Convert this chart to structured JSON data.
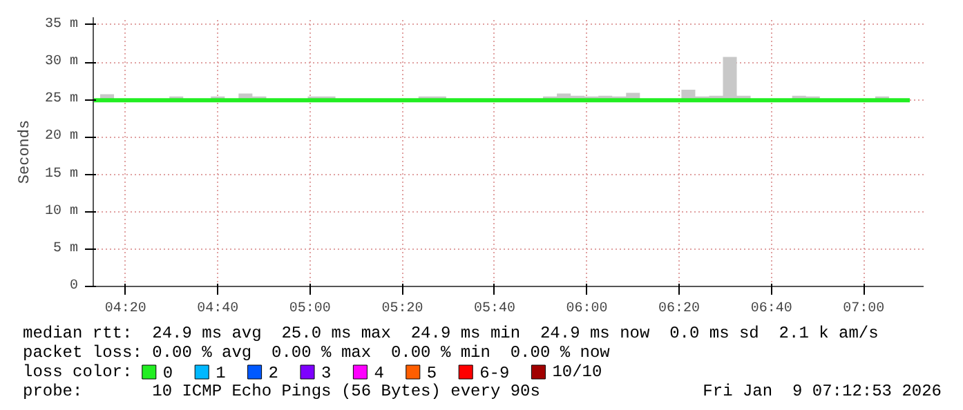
{
  "chart_data": {
    "type": "line",
    "ylabel": "Seconds",
    "legend_title": "loss color:",
    "legend": "bottom",
    "grid": true,
    "x": [
      "2026-01-09T04:13",
      "2026-01-09T04:16",
      "2026-01-09T04:19",
      "2026-01-09T04:22",
      "2026-01-09T04:25",
      "2026-01-09T04:28",
      "2026-01-09T04:31",
      "2026-01-09T04:34",
      "2026-01-09T04:37",
      "2026-01-09T04:40",
      "2026-01-09T04:43",
      "2026-01-09T04:46",
      "2026-01-09T04:49",
      "2026-01-09T04:52",
      "2026-01-09T04:55",
      "2026-01-09T04:58",
      "2026-01-09T05:01",
      "2026-01-09T05:04",
      "2026-01-09T05:07",
      "2026-01-09T05:10",
      "2026-01-09T05:13",
      "2026-01-09T05:16",
      "2026-01-09T05:19",
      "2026-01-09T05:22",
      "2026-01-09T05:25",
      "2026-01-09T05:28",
      "2026-01-09T05:31",
      "2026-01-09T05:34",
      "2026-01-09T05:37",
      "2026-01-09T05:40",
      "2026-01-09T05:43",
      "2026-01-09T05:46",
      "2026-01-09T05:49",
      "2026-01-09T05:52",
      "2026-01-09T05:55",
      "2026-01-09T05:58",
      "2026-01-09T06:01",
      "2026-01-09T06:04",
      "2026-01-09T06:07",
      "2026-01-09T06:10",
      "2026-01-09T06:13",
      "2026-01-09T06:16",
      "2026-01-09T06:19",
      "2026-01-09T06:22",
      "2026-01-09T06:25",
      "2026-01-09T06:28",
      "2026-01-09T06:31",
      "2026-01-09T06:34",
      "2026-01-09T06:37",
      "2026-01-09T06:40",
      "2026-01-09T06:43",
      "2026-01-09T06:46",
      "2026-01-09T06:49",
      "2026-01-09T06:52",
      "2026-01-09T06:55",
      "2026-01-09T06:58",
      "2026-01-09T07:01",
      "2026-01-09T07:04",
      "2026-01-09T07:07",
      "2026-01-09T07:10"
    ],
    "xlim": [
      "2026-01-09T04:13",
      "2026-01-09T07:13"
    ],
    "xticks": [
      {
        "value": "2026-01-09T04:20",
        "label": "04:20"
      },
      {
        "value": "2026-01-09T04:40",
        "label": "04:40"
      },
      {
        "value": "2026-01-09T05:00",
        "label": "05:00"
      },
      {
        "value": "2026-01-09T05:20",
        "label": "05:20"
      },
      {
        "value": "2026-01-09T05:40",
        "label": "05:40"
      },
      {
        "value": "2026-01-09T06:00",
        "label": "06:00"
      },
      {
        "value": "2026-01-09T06:20",
        "label": "06:20"
      },
      {
        "value": "2026-01-09T06:40",
        "label": "06:40"
      },
      {
        "value": "2026-01-09T07:00",
        "label": "07:00"
      }
    ],
    "ylim": [
      0,
      36
    ],
    "yticks": [
      0,
      {
        "value": 5,
        "label": "5 m"
      },
      {
        "value": 10,
        "label": "10 m"
      },
      {
        "value": 15,
        "label": "15 m"
      },
      {
        "value": 20,
        "label": "20 m"
      },
      {
        "value": 25,
        "label": "25 m"
      },
      {
        "value": 30,
        "label": "30 m"
      },
      {
        "value": 35,
        "label": "35 m"
      }
    ],
    "series": [
      {
        "name": "0",
        "color": "#22ee22",
        "values": [
          24.9,
          24.9,
          24.9,
          24.9,
          24.9,
          24.9,
          24.9,
          24.9,
          24.9,
          24.9,
          24.9,
          24.9,
          24.9,
          24.9,
          24.9,
          24.9,
          24.9,
          24.9,
          24.9,
          24.9,
          24.9,
          24.9,
          24.9,
          24.9,
          24.9,
          24.9,
          24.9,
          24.9,
          24.9,
          24.9,
          24.9,
          24.9,
          24.9,
          24.9,
          24.9,
          24.9,
          24.9,
          24.9,
          24.9,
          24.9,
          24.9,
          24.9,
          24.9,
          24.9,
          24.9,
          24.9,
          24.9,
          24.9,
          24.9,
          24.9,
          24.9,
          24.9,
          24.9,
          24.9,
          24.9,
          24.9,
          24.9,
          24.9,
          24.9,
          24.9
        ],
        "lower": [
          24.9,
          24.9,
          24.9,
          24.9,
          24.9,
          24.9,
          24.9,
          24.9,
          24.9,
          24.9,
          24.9,
          24.9,
          24.9,
          24.9,
          24.9,
          24.9,
          24.9,
          24.9,
          24.9,
          24.9,
          24.9,
          24.9,
          24.9,
          24.9,
          24.9,
          24.9,
          24.9,
          24.9,
          24.9,
          24.9,
          24.9,
          24.9,
          24.9,
          24.9,
          24.9,
          24.9,
          24.9,
          24.9,
          24.9,
          24.9,
          24.9,
          24.9,
          24.9,
          24.9,
          24.9,
          24.9,
          24.9,
          24.9,
          24.9,
          24.9,
          24.9,
          24.9,
          24.9,
          24.9,
          24.9,
          24.9,
          24.9,
          24.9,
          24.9,
          24.9
        ],
        "upper": [
          24.9,
          25.7,
          24.9,
          24.9,
          24.9,
          24.9,
          25.4,
          24.9,
          24.9,
          25.4,
          24.9,
          25.8,
          25.4,
          24.9,
          24.9,
          24.9,
          25.4,
          25.4,
          24.9,
          24.9,
          24.9,
          24.9,
          24.9,
          24.9,
          25.4,
          25.4,
          24.9,
          24.9,
          24.9,
          24.9,
          24.9,
          24.9,
          24.9,
          25.4,
          25.8,
          25.5,
          25.4,
          25.5,
          25.4,
          25.9,
          24.9,
          24.9,
          24.9,
          26.3,
          25.4,
          25.5,
          30.7,
          25.5,
          24.9,
          24.9,
          24.9,
          25.5,
          25.4,
          24.9,
          24.9,
          24.9,
          24.9,
          25.4,
          24.9,
          24.9
        ]
      },
      {
        "name": "1",
        "color": "#00b8ff",
        "values": [
          null,
          null,
          null,
          null,
          null,
          null,
          null,
          null,
          null,
          null,
          null,
          null,
          null,
          null,
          null,
          null,
          null,
          null,
          null,
          null,
          null,
          null,
          null,
          null,
          null,
          null,
          null,
          null,
          null,
          null,
          null,
          null,
          null,
          null,
          null,
          null,
          null,
          null,
          null,
          null,
          null,
          null,
          null,
          null,
          null,
          null,
          null,
          null,
          null,
          null,
          null,
          null,
          null,
          null,
          null,
          null,
          null,
          null,
          null,
          null
        ]
      },
      {
        "name": "2",
        "color": "#0059ff",
        "values": [
          null,
          null,
          null,
          null,
          null,
          null,
          null,
          null,
          null,
          null,
          null,
          null,
          null,
          null,
          null,
          null,
          null,
          null,
          null,
          null,
          null,
          null,
          null,
          null,
          null,
          null,
          null,
          null,
          null,
          null,
          null,
          null,
          null,
          null,
          null,
          null,
          null,
          null,
          null,
          null,
          null,
          null,
          null,
          null,
          null,
          null,
          null,
          null,
          null,
          null,
          null,
          null,
          null,
          null,
          null,
          null,
          null,
          null,
          null,
          null
        ]
      },
      {
        "name": "3",
        "color": "#7e00ff",
        "values": [
          null,
          null,
          null,
          null,
          null,
          null,
          null,
          null,
          null,
          null,
          null,
          null,
          null,
          null,
          null,
          null,
          null,
          null,
          null,
          null,
          null,
          null,
          null,
          null,
          null,
          null,
          null,
          null,
          null,
          null,
          null,
          null,
          null,
          null,
          null,
          null,
          null,
          null,
          null,
          null,
          null,
          null,
          null,
          null,
          null,
          null,
          null,
          null,
          null,
          null,
          null,
          null,
          null,
          null,
          null,
          null,
          null,
          null,
          null,
          null
        ]
      },
      {
        "name": "4",
        "color": "#ff00ff",
        "values": [
          null,
          null,
          null,
          null,
          null,
          null,
          null,
          null,
          null,
          null,
          null,
          null,
          null,
          null,
          null,
          null,
          null,
          null,
          null,
          null,
          null,
          null,
          null,
          null,
          null,
          null,
          null,
          null,
          null,
          null,
          null,
          null,
          null,
          null,
          null,
          null,
          null,
          null,
          null,
          null,
          null,
          null,
          null,
          null,
          null,
          null,
          null,
          null,
          null,
          null,
          null,
          null,
          null,
          null,
          null,
          null,
          null,
          null,
          null,
          null
        ]
      },
      {
        "name": "5",
        "color": "#ff5e00",
        "values": [
          null,
          null,
          null,
          null,
          null,
          null,
          null,
          null,
          null,
          null,
          null,
          null,
          null,
          null,
          null,
          null,
          null,
          null,
          null,
          null,
          null,
          null,
          null,
          null,
          null,
          null,
          null,
          null,
          null,
          null,
          null,
          null,
          null,
          null,
          null,
          null,
          null,
          null,
          null,
          null,
          null,
          null,
          null,
          null,
          null,
          null,
          null,
          null,
          null,
          null,
          null,
          null,
          null,
          null,
          null,
          null,
          null,
          null,
          null,
          null
        ]
      },
      {
        "name": "6-9",
        "color": "#ff0000",
        "values": [
          null,
          null,
          null,
          null,
          null,
          null,
          null,
          null,
          null,
          null,
          null,
          null,
          null,
          null,
          null,
          null,
          null,
          null,
          null,
          null,
          null,
          null,
          null,
          null,
          null,
          null,
          null,
          null,
          null,
          null,
          null,
          null,
          null,
          null,
          null,
          null,
          null,
          null,
          null,
          null,
          null,
          null,
          null,
          null,
          null,
          null,
          null,
          null,
          null,
          null,
          null,
          null,
          null,
          null,
          null,
          null,
          null,
          null,
          null,
          null
        ]
      },
      {
        "name": "10/10",
        "color": "#a10000",
        "values": [
          null,
          null,
          null,
          null,
          null,
          null,
          null,
          null,
          null,
          null,
          null,
          null,
          null,
          null,
          null,
          null,
          null,
          null,
          null,
          null,
          null,
          null,
          null,
          null,
          null,
          null,
          null,
          null,
          null,
          null,
          null,
          null,
          null,
          null,
          null,
          null,
          null,
          null,
          null,
          null,
          null,
          null,
          null,
          null,
          null,
          null,
          null,
          null,
          null,
          null,
          null,
          null,
          null,
          null,
          null,
          null,
          null,
          null,
          null,
          null
        ]
      }
    ],
    "annotations": [
      "median rtt:  24.9 ms avg  25.0 ms max  24.9 ms min  24.9 ms now  0.0 ms sd  2.1 k am/s",
      "packet loss: 0.00 % avg  0.00 % max  0.00 % min  0.00 % now",
      "probe:       10 ICMP Echo Pings (56 Bytes) every 90s",
      "Fri Jan  9 07:12:53 2026"
    ]
  }
}
